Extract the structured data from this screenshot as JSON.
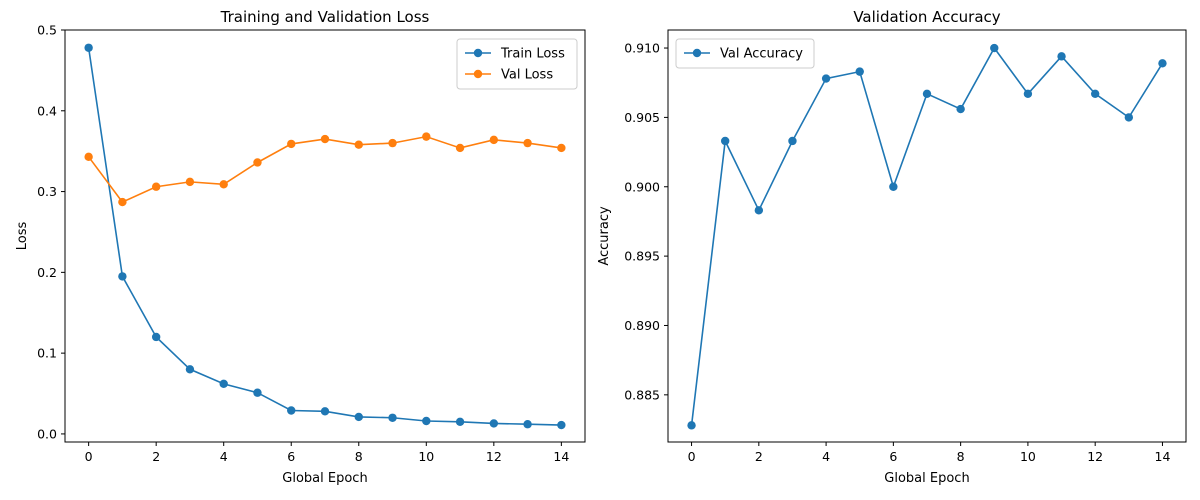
{
  "chart_data": [
    {
      "type": "line",
      "title": "Training and Validation Loss",
      "xlabel": "Global Epoch",
      "ylabel": "Loss",
      "x": [
        0,
        1,
        2,
        3,
        4,
        5,
        6,
        7,
        8,
        9,
        10,
        11,
        12,
        13,
        14
      ],
      "xlim": [
        -0.7,
        14.7
      ],
      "ylim": [
        -0.01,
        0.5
      ],
      "xticks": [
        0,
        2,
        4,
        6,
        8,
        10,
        12,
        14
      ],
      "xtick_labels": [
        "0",
        "2",
        "4",
        "6",
        "8",
        "10",
        "12",
        "14"
      ],
      "yticks": [
        0.0,
        0.1,
        0.2,
        0.3,
        0.4,
        0.5
      ],
      "ytick_labels": [
        "0.0",
        "0.1",
        "0.2",
        "0.3",
        "0.4",
        "0.5"
      ],
      "grid": false,
      "legend_position": "top-right",
      "series": [
        {
          "name": "Train Loss",
          "color": "#1f77b4",
          "marker": "circle",
          "values": [
            0.478,
            0.195,
            0.12,
            0.08,
            0.062,
            0.051,
            0.029,
            0.028,
            0.021,
            0.02,
            0.016,
            0.015,
            0.013,
            0.012,
            0.011
          ]
        },
        {
          "name": "Val Loss",
          "color": "#ff7f0e",
          "marker": "circle",
          "values": [
            0.343,
            0.287,
            0.306,
            0.312,
            0.309,
            0.336,
            0.359,
            0.365,
            0.358,
            0.36,
            0.368,
            0.354,
            0.364,
            0.36,
            0.354
          ]
        }
      ]
    },
    {
      "type": "line",
      "title": "Validation Accuracy",
      "xlabel": "Global Epoch",
      "ylabel": "Accuracy",
      "x": [
        0,
        1,
        2,
        3,
        4,
        5,
        6,
        7,
        8,
        9,
        10,
        11,
        12,
        13,
        14
      ],
      "xlim": [
        -0.7,
        14.7
      ],
      "ylim": [
        0.8816,
        0.9113
      ],
      "xticks": [
        0,
        2,
        4,
        6,
        8,
        10,
        12,
        14
      ],
      "xtick_labels": [
        "0",
        "2",
        "4",
        "6",
        "8",
        "10",
        "12",
        "14"
      ],
      "yticks": [
        0.885,
        0.89,
        0.895,
        0.9,
        0.905,
        0.91
      ],
      "ytick_labels": [
        "0.885",
        "0.890",
        "0.895",
        "0.900",
        "0.905",
        "0.910"
      ],
      "grid": false,
      "legend_position": "top-left",
      "series": [
        {
          "name": "Val Accuracy",
          "color": "#1f77b4",
          "marker": "circle",
          "values": [
            0.8828,
            0.9033,
            0.8983,
            0.9033,
            0.9078,
            0.9083,
            0.9,
            0.9067,
            0.9056,
            0.91,
            0.9067,
            0.9094,
            0.9067,
            0.905,
            0.9089
          ]
        }
      ]
    }
  ]
}
